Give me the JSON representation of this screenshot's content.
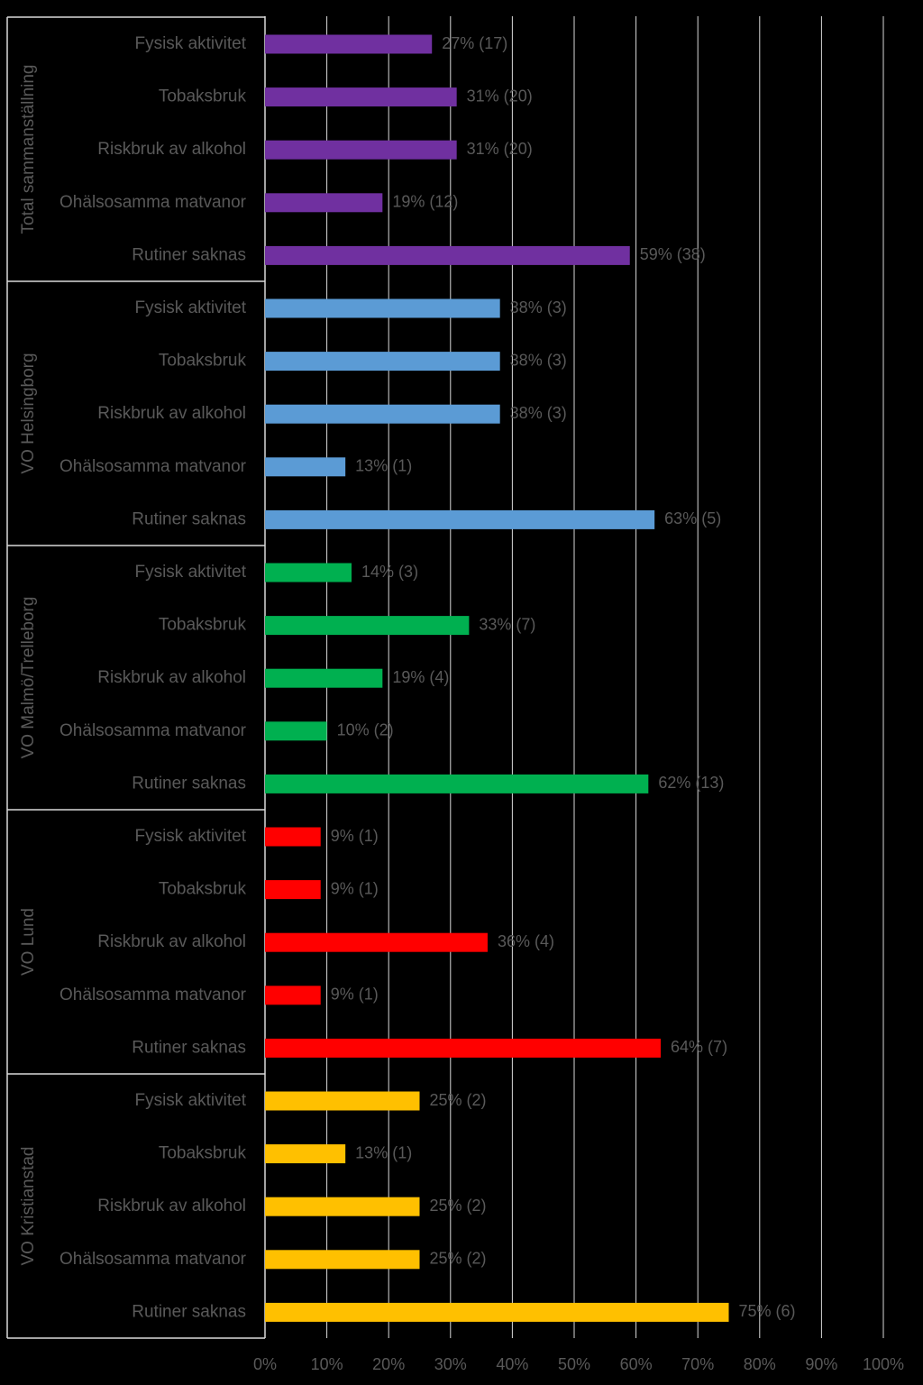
{
  "chart_data": {
    "type": "bar",
    "orientation": "horizontal",
    "title": "",
    "xlabel": "",
    "ylabel": "",
    "xlim": [
      0,
      100
    ],
    "x_ticks": [
      "0%",
      "10%",
      "20%",
      "30%",
      "40%",
      "50%",
      "60%",
      "70%",
      "80%",
      "90%",
      "100%"
    ],
    "grid": "vertical",
    "legend": "none",
    "groups": [
      {
        "name": "Total sammanställning",
        "color": "#7030A0",
        "categories": [
          "Fysisk aktivitet",
          "Tobaksbruk",
          "Riskbruk av alkohol",
          "Ohälsosamma matvanor",
          "Rutiner saknas"
        ],
        "values": [
          27,
          31,
          31,
          19,
          59
        ],
        "labels": [
          "27% (17)",
          "31% (20)",
          "31% (20)",
          "19% (12)",
          "59% (38)"
        ]
      },
      {
        "name": "VO Helsingborg",
        "color": "#5B9BD5",
        "categories": [
          "Fysisk aktivitet",
          "Tobaksbruk",
          "Riskbruk av alkohol",
          "Ohälsosamma matvanor",
          "Rutiner saknas"
        ],
        "values": [
          38,
          38,
          38,
          13,
          63
        ],
        "labels": [
          "38% (3)",
          "38% (3)",
          "38% (3)",
          "13% (1)",
          "63% (5)"
        ]
      },
      {
        "name": "VO Malmö/Trelleborg",
        "color": "#00B050",
        "categories": [
          "Fysisk aktivitet",
          "Tobaksbruk",
          "Riskbruk av alkohol",
          "Ohälsosamma matvanor",
          "Rutiner saknas"
        ],
        "values": [
          14,
          33,
          19,
          10,
          62
        ],
        "labels": [
          "14% (3)",
          "33% (7)",
          "19% (4)",
          "10% (2)",
          "62% (13)"
        ]
      },
      {
        "name": "VO Lund",
        "color": "#FF0000",
        "categories": [
          "Fysisk aktivitet",
          "Tobaksbruk",
          "Riskbruk av alkohol",
          "Ohälsosamma matvanor",
          "Rutiner saknas"
        ],
        "values": [
          9,
          9,
          36,
          9,
          64
        ],
        "labels": [
          "9% (1)",
          "9% (1)",
          "36% (4)",
          "9% (1)",
          "64% (7)"
        ]
      },
      {
        "name": "VO Kristianstad",
        "color": "#FFC000",
        "categories": [
          "Fysisk aktivitet",
          "Tobaksbruk",
          "Riskbruk av alkohol",
          "Ohälsosamma matvanor",
          "Rutiner saknas"
        ],
        "values": [
          25,
          13,
          25,
          25,
          75
        ],
        "labels": [
          "25% (2)",
          "13% (1)",
          "25% (2)",
          "25% (2)",
          "75% (6)"
        ]
      }
    ]
  }
}
